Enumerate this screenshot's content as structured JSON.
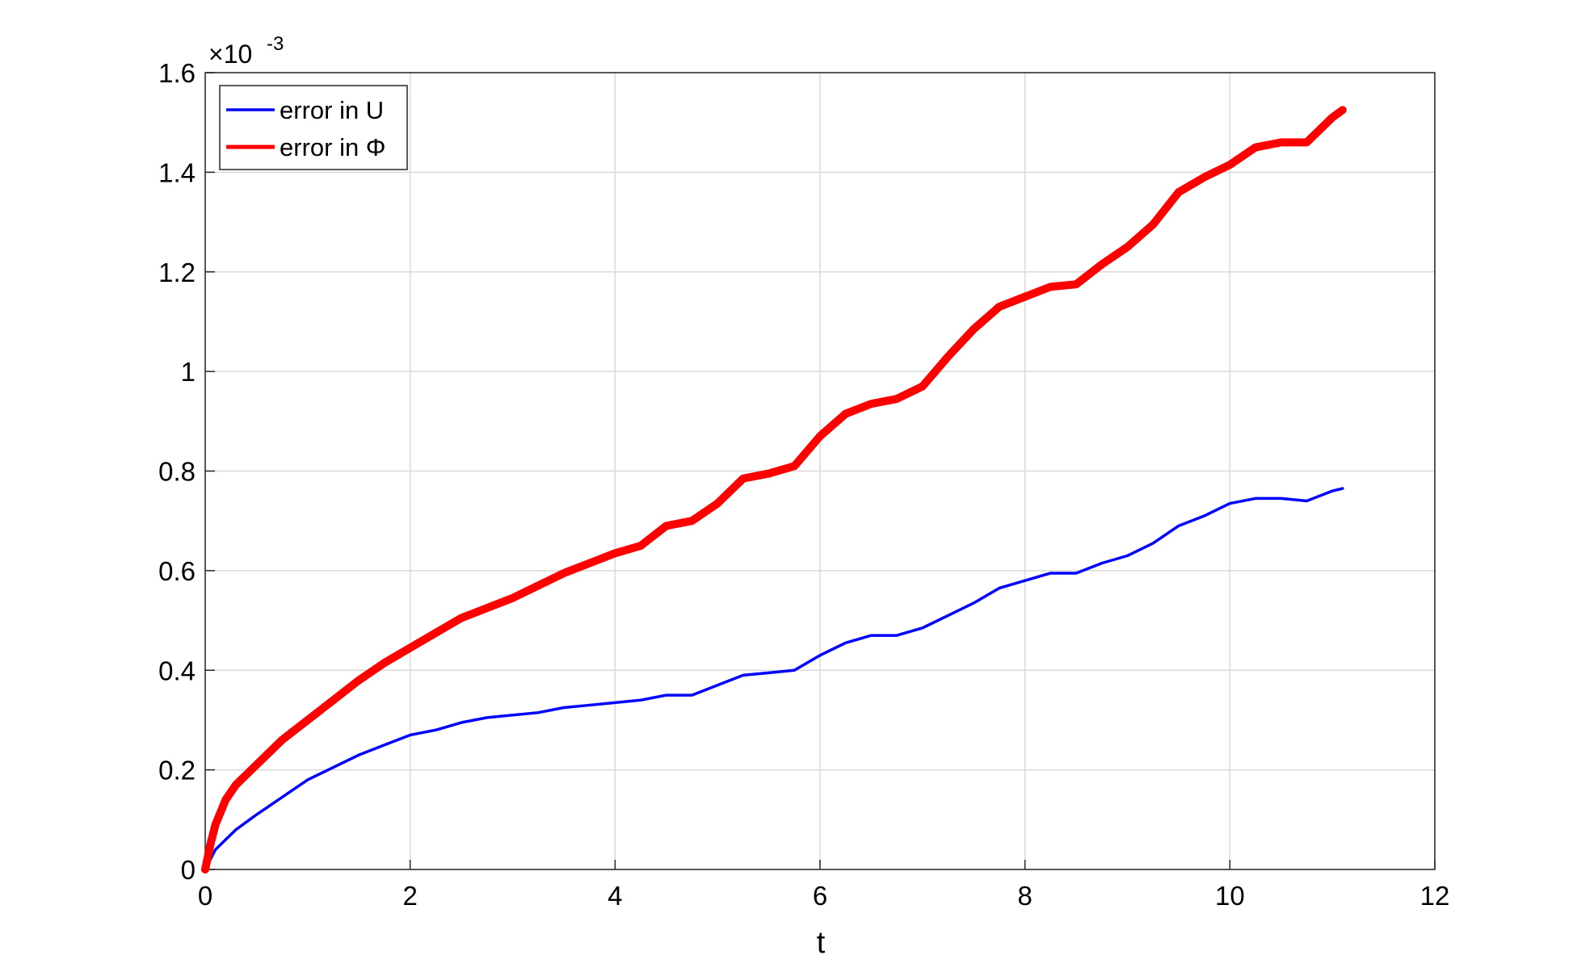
{
  "chart_data": {
    "type": "line",
    "xlabel": "t",
    "yscale_factor": {
      "base": "×10",
      "exponent": "-3"
    },
    "x": [
      0,
      0.05,
      0.1,
      0.2,
      0.3,
      0.5,
      0.75,
      1,
      1.25,
      1.5,
      1.75,
      2,
      2.25,
      2.5,
      2.75,
      3,
      3.25,
      3.5,
      3.75,
      4,
      4.25,
      4.5,
      4.75,
      5,
      5.25,
      5.5,
      5.75,
      6,
      6.25,
      6.5,
      6.75,
      7,
      7.25,
      7.5,
      7.75,
      8,
      8.25,
      8.5,
      8.75,
      9,
      9.25,
      9.5,
      9.75,
      10,
      10.25,
      10.5,
      10.75,
      11,
      11.1
    ],
    "series": [
      {
        "name": "error in U",
        "color": "#0000ff",
        "values": [
          0,
          0.02,
          0.04,
          0.06,
          0.08,
          0.11,
          0.145,
          0.18,
          0.205,
          0.23,
          0.25,
          0.27,
          0.28,
          0.295,
          0.305,
          0.31,
          0.315,
          0.325,
          0.33,
          0.335,
          0.34,
          0.35,
          0.35,
          0.37,
          0.39,
          0.395,
          0.4,
          0.43,
          0.455,
          0.47,
          0.47,
          0.485,
          0.51,
          0.535,
          0.565,
          0.58,
          0.595,
          0.595,
          0.615,
          0.63,
          0.655,
          0.69,
          0.71,
          0.735,
          0.745,
          0.745,
          0.74,
          0.76,
          0.765
        ]
      },
      {
        "name": "error in Φ",
        "color": "#ff0000",
        "values": [
          0,
          0.05,
          0.09,
          0.14,
          0.17,
          0.21,
          0.26,
          0.3,
          0.34,
          0.38,
          0.415,
          0.445,
          0.475,
          0.505,
          0.525,
          0.545,
          0.57,
          0.595,
          0.615,
          0.635,
          0.65,
          0.69,
          0.7,
          0.735,
          0.785,
          0.795,
          0.81,
          0.87,
          0.915,
          0.935,
          0.945,
          0.97,
          1.03,
          1.085,
          1.13,
          1.15,
          1.17,
          1.175,
          1.215,
          1.25,
          1.295,
          1.36,
          1.39,
          1.415,
          1.45,
          1.46,
          1.46,
          1.51,
          1.525
        ]
      }
    ],
    "xlim": [
      0,
      12
    ],
    "xticks": [
      0,
      2,
      4,
      6,
      8,
      10,
      12
    ],
    "ylim": [
      0,
      1.6
    ],
    "yticks": [
      0,
      0.2,
      0.4,
      0.6,
      0.8,
      1,
      1.2,
      1.4,
      1.6
    ],
    "grid": true,
    "legend": "upper left"
  }
}
